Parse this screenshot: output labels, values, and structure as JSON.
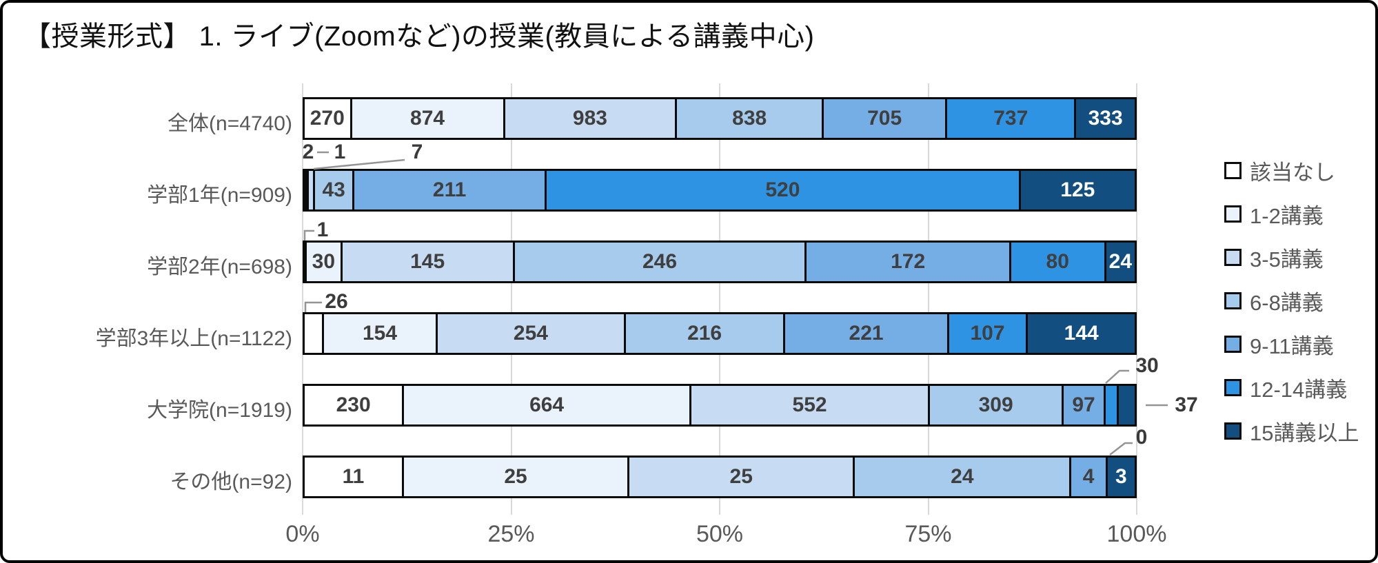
{
  "title": "【授業形式】 1. ライブ(Zoomなど)の授業(教員による講義中心)",
  "chart_data": {
    "type": "bar",
    "orientation": "horizontal",
    "stacked": true,
    "normalized": "100% of each row total",
    "title": "【授業形式】 1. ライブ(Zoomなど)の授業(教員による講義中心)",
    "categories": [
      "全体(n=4740)",
      "学部1年(n=909)",
      "学部2年(n=698)",
      "学部3年以上(n=1122)",
      "大学院(n=1919)",
      "その他(n=92)"
    ],
    "series": [
      {
        "name": "該当なし",
        "color": "#ffffff",
        "values": [
          270,
          2,
          1,
          26,
          230,
          11
        ]
      },
      {
        "name": "1-2講義",
        "color": "#eaf2fb",
        "values": [
          874,
          1,
          30,
          154,
          664,
          25
        ]
      },
      {
        "name": "3-5講義",
        "color": "#c7dcf2",
        "values": [
          983,
          7,
          145,
          254,
          552,
          25
        ]
      },
      {
        "name": "6-8講義",
        "color": "#a6cbec",
        "values": [
          838,
          43,
          246,
          216,
          309,
          24
        ]
      },
      {
        "name": "9-11講義",
        "color": "#75aee4",
        "values": [
          705,
          211,
          172,
          221,
          97,
          4
        ]
      },
      {
        "name": "12-14講義",
        "color": "#2f93e3",
        "values": [
          737,
          520,
          80,
          107,
          30,
          0
        ]
      },
      {
        "name": "15講義以上",
        "color": "#124f80",
        "values": [
          333,
          125,
          24,
          144,
          37,
          3
        ]
      }
    ],
    "row_totals": [
      4740,
      909,
      698,
      1122,
      1919,
      92
    ],
    "x_axis": {
      "ticks": [
        "0%",
        "25%",
        "50%",
        "75%",
        "100%"
      ],
      "range": [
        0,
        100
      ],
      "grid": true
    },
    "legend_position": "right",
    "label_text_color": "#3f3f3f",
    "label_text_color_on_dark": "#ffffff",
    "outside_labels": [
      {
        "row": 1,
        "series": 0
      },
      {
        "row": 1,
        "series": 1
      },
      {
        "row": 1,
        "series": 2
      },
      {
        "row": 2,
        "series": 0
      },
      {
        "row": 3,
        "series": 0
      },
      {
        "row": 4,
        "series": 5
      },
      {
        "row": 4,
        "series": 6
      },
      {
        "row": 5,
        "series": 5
      }
    ]
  }
}
